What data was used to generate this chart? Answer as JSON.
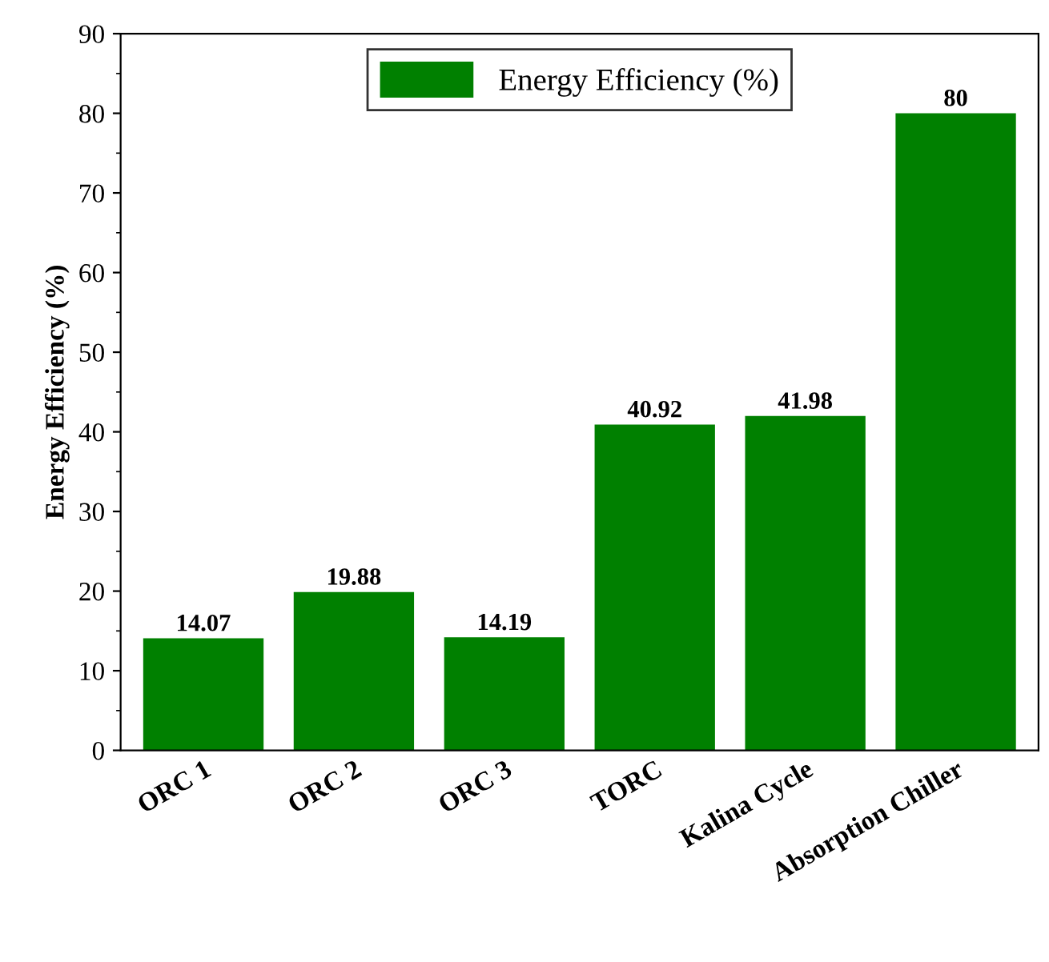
{
  "chart_data": {
    "type": "bar",
    "ylabel": "Energy Efficiency (%)",
    "categories": [
      "ORC 1",
      "ORC 2",
      "ORC 3",
      "TORC",
      "Kalina Cycle",
      "Absorption Chiller"
    ],
    "series": [
      {
        "name": "Energy Efficiency (%)",
        "color": "#008000",
        "values": [
          14.07,
          19.88,
          14.19,
          40.92,
          41.98,
          80
        ]
      }
    ],
    "ylim": [
      0,
      90
    ],
    "yticks": [
      0,
      10,
      20,
      30,
      40,
      50,
      60,
      70,
      80,
      90
    ],
    "data_labels": true,
    "legend": "top",
    "grid": false
  }
}
